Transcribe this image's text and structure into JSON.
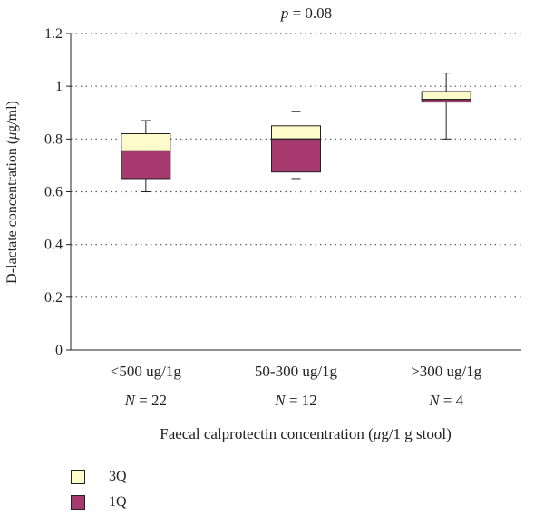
{
  "chart_data": {
    "type": "box",
    "title": "p = 0.08",
    "title_italic_part": "p",
    "title_rest": " = 0.08",
    "ylabel": "D-lactate concentration (μg/ml)",
    "ylabel_pre": "D-lactate concentration (",
    "ylabel_unit_italic": "μ",
    "ylabel_post": "g/ml)",
    "xlabel": "Faecal calprotectin concentration (μg/1 g stool)",
    "xlabel_pre": "Faecal calprotectin concentration (",
    "xlabel_unit_italic": "μ",
    "xlabel_post": "g/1 g stool)",
    "ylim": [
      0,
      1.2
    ],
    "yticks": [
      "0",
      "0.2",
      "0.4",
      "0.6",
      "0.8",
      "1",
      "1.2"
    ],
    "grid": "horizontal dotted",
    "legend_placement": "bottom-left",
    "categories": [
      "<500 ug/1g",
      "50-300 ug/1g",
      ">300 ug/1g"
    ],
    "n_labels": [
      "N = 22",
      "N = 12",
      "N = 4"
    ],
    "n_prefix_italic": "N",
    "boxes": [
      {
        "category": "<500 ug/1g",
        "min": 0.6,
        "q1": 0.65,
        "median": 0.755,
        "q3": 0.82,
        "max": 0.87
      },
      {
        "category": "50-300 ug/1g",
        "min": 0.65,
        "q1": 0.675,
        "median": 0.8,
        "q3": 0.85,
        "max": 0.905
      },
      {
        "category": ">300 ug/1g",
        "min": 0.8,
        "q1": 0.94,
        "median": 0.95,
        "q3": 0.98,
        "max": 1.05
      }
    ],
    "series": [
      {
        "name": "3Q",
        "color": "#fdfbc9"
      },
      {
        "name": "1Q",
        "color": "#a63a6e"
      }
    ]
  }
}
